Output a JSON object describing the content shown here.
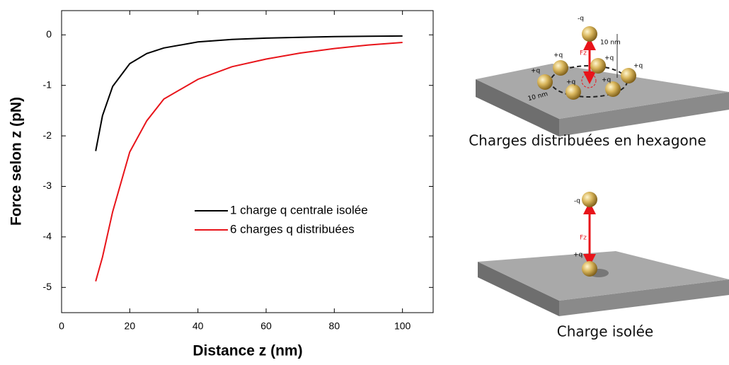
{
  "chart_data": {
    "type": "line",
    "xlabel": "Distance z (nm)",
    "ylabel": "Force selon z (pN)",
    "x": [
      10,
      12,
      15,
      20,
      25,
      30,
      40,
      50,
      60,
      70,
      80,
      90,
      100
    ],
    "series": [
      {
        "name": "1 charge q centrale isolée",
        "color": "#000000",
        "values": [
          -2.3,
          -1.6,
          -1.02,
          -0.57,
          -0.37,
          -0.26,
          -0.14,
          -0.09,
          -0.065,
          -0.048,
          -0.036,
          -0.028,
          -0.023
        ]
      },
      {
        "name": "6 charges q distribuées",
        "color": "#e8141a",
        "values": [
          -4.88,
          -4.4,
          -3.5,
          -2.32,
          -1.7,
          -1.27,
          -0.88,
          -0.63,
          -0.48,
          -0.36,
          -0.27,
          -0.2,
          -0.15
        ]
      }
    ],
    "xlim": [
      0,
      109
    ],
    "xticks": [
      0,
      20,
      40,
      60,
      80,
      100
    ],
    "ylim": [
      -5.5,
      0.48
    ],
    "yticks": [
      0,
      -1,
      -2,
      -3,
      -4,
      -5
    ],
    "legend": "lower right"
  },
  "diagrams": {
    "hexagon": {
      "caption": "Charges distribuées en hexagone",
      "top_charge": "-q",
      "charge": "+q",
      "distance": "10 nm",
      "force": "Fz"
    },
    "isolated": {
      "caption": "Charge isolée",
      "top_charge": "-q",
      "charge": "+q",
      "force": "Fz"
    }
  }
}
